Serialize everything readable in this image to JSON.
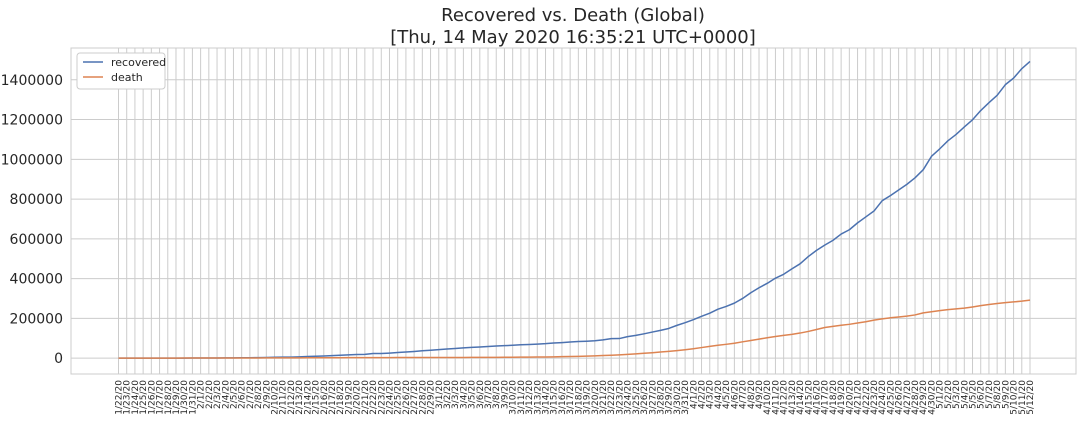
{
  "chart_data": {
    "type": "line",
    "title_line1": "Recovered vs. Death (Global)",
    "title_line2": "[Thu, 14 May 2020 16:35:21 UTC+0000]",
    "xlabel": "",
    "ylabel": "",
    "ylim": [
      -80000,
      1560000
    ],
    "yticks": [
      0,
      200000,
      400000,
      600000,
      800000,
      1000000,
      1200000,
      1400000
    ],
    "ytick_labels": [
      "0",
      "200000",
      "400000",
      "600000",
      "800000",
      "1000000",
      "1200000",
      "1400000"
    ],
    "grid": true,
    "legend_position": "top-left",
    "categories": [
      "1/22/20",
      "1/23/20",
      "1/24/20",
      "1/25/20",
      "1/26/20",
      "1/27/20",
      "1/28/20",
      "1/29/20",
      "1/30/20",
      "1/31/20",
      "2/1/20",
      "2/2/20",
      "2/3/20",
      "2/4/20",
      "2/5/20",
      "2/6/20",
      "2/7/20",
      "2/8/20",
      "2/9/20",
      "2/10/20",
      "2/11/20",
      "2/12/20",
      "2/13/20",
      "2/14/20",
      "2/15/20",
      "2/16/20",
      "2/17/20",
      "2/18/20",
      "2/19/20",
      "2/20/20",
      "2/21/20",
      "2/22/20",
      "2/23/20",
      "2/24/20",
      "2/25/20",
      "2/26/20",
      "2/27/20",
      "2/28/20",
      "2/29/20",
      "3/1/20",
      "3/2/20",
      "3/3/20",
      "3/4/20",
      "3/5/20",
      "3/6/20",
      "3/7/20",
      "3/8/20",
      "3/9/20",
      "3/10/20",
      "3/11/20",
      "3/12/20",
      "3/13/20",
      "3/14/20",
      "3/15/20",
      "3/16/20",
      "3/17/20",
      "3/18/20",
      "3/19/20",
      "3/20/20",
      "3/21/20",
      "3/22/20",
      "3/23/20",
      "3/24/20",
      "3/25/20",
      "3/26/20",
      "3/27/20",
      "3/28/20",
      "3/29/20",
      "3/30/20",
      "3/31/20",
      "4/1/20",
      "4/2/20",
      "4/3/20",
      "4/4/20",
      "4/5/20",
      "4/6/20",
      "4/7/20",
      "4/8/20",
      "4/9/20",
      "4/10/20",
      "4/11/20",
      "4/12/20",
      "4/13/20",
      "4/14/20",
      "4/15/20",
      "4/16/20",
      "4/17/20",
      "4/18/20",
      "4/19/20",
      "4/20/20",
      "4/21/20",
      "4/22/20",
      "4/23/20",
      "4/24/20",
      "4/25/20",
      "4/26/20",
      "4/27/20",
      "4/28/20",
      "4/29/20",
      "4/30/20",
      "5/1/20",
      "5/2/20",
      "5/3/20",
      "5/4/20",
      "5/5/20",
      "5/6/20",
      "5/7/20",
      "5/8/20",
      "5/9/20",
      "5/10/20",
      "5/11/20",
      "5/12/20"
    ],
    "series": [
      {
        "name": "recovered",
        "color": "#4c72b0",
        "values": [
          28,
          30,
          36,
          39,
          52,
          61,
          107,
          126,
          143,
          222,
          284,
          472,
          623,
          852,
          1124,
          1487,
          2011,
          2616,
          3244,
          3946,
          4683,
          5150,
          6295,
          8058,
          9395,
          10865,
          12583,
          14352,
          16121,
          18177,
          18890,
          22886,
          23394,
          25227,
          27905,
          30384,
          33277,
          36711,
          39782,
          42716,
          45602,
          48228,
          51170,
          53796,
          55865,
          58358,
          60694,
          62494,
          64404,
          67003,
          68324,
          70251,
          72624,
          76034,
          78088,
          80840,
          83207,
          84854,
          87256,
          91499,
          97882,
          98351,
          108000,
          114218,
          122150,
          130915,
          139415,
          149082,
          164566,
          178034,
          193177,
          210263,
          225796,
          246152,
          260012,
          276515,
          300054,
          328661,
          353975,
          376096,
          402110,
          421722,
          448655,
          474261,
          510713,
          541953,
          568343,
          592319,
          623903,
          645738,
          680296,
          710116,
          739802,
          791929,
          817430,
          845860,
          874009,
          906989,
          947839,
          1014862,
          1052381,
          1093126,
          1125232,
          1162679,
          1198816,
          1245444,
          1284722,
          1322092,
          1375620,
          1408434,
          1456128,
          1492660
        ]
      },
      {
        "name": "death",
        "color": "#dd8452",
        "values": [
          17,
          18,
          26,
          42,
          56,
          82,
          131,
          133,
          171,
          213,
          259,
          362,
          426,
          492,
          564,
          634,
          719,
          806,
          906,
          1013,
          1113,
          1118,
          1371,
          1523,
          1666,
          1770,
          1868,
          2007,
          2122,
          2247,
          2251,
          2458,
          2469,
          2629,
          2708,
          2770,
          2814,
          2872,
          2941,
          2996,
          3085,
          3160,
          3254,
          3348,
          3460,
          3558,
          3803,
          3996,
          4262,
          4615,
          4720,
          5404,
          5819,
          6440,
          7126,
          7905,
          8733,
          9867,
          11299,
          12973,
          14623,
          16497,
          18615,
          21181,
          24071,
          27198,
          30652,
          33925,
          37582,
          42107,
          46809,
          52983,
          58787,
          64606,
          69374,
          74565,
          81865,
          88338,
          95455,
          102525,
          108502,
          114090,
          119482,
          125984,
          134176,
          143800,
          153821,
          159509,
          165069,
          169986,
          176583,
          183027,
          190858,
          197159,
          202846,
          206544,
          211167,
          217153,
          227638,
          233388,
          238650,
          243808,
          247470,
          251537,
          257239,
          263855,
          269567,
          274898,
          279311,
          282709,
          286330,
          291942
        ]
      }
    ]
  }
}
